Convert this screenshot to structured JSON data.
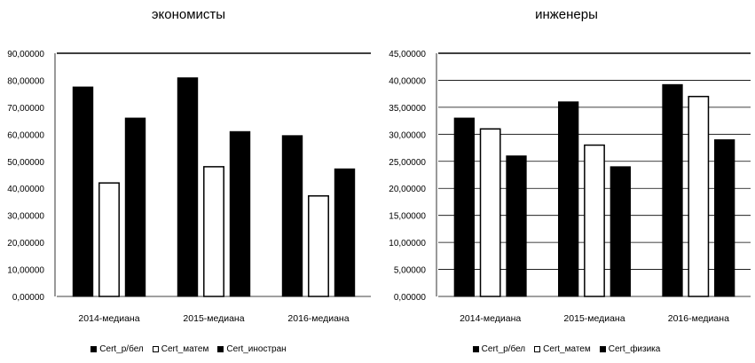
{
  "chart_data": [
    {
      "type": "bar",
      "title": "экономисты",
      "categories": [
        "2014-медиана",
        "2015-медиана",
        "2016-медиана"
      ],
      "series": [
        {
          "name": "Cert_р/бел",
          "values": [
            77.5,
            80.9,
            59.5
          ],
          "fill": "#000000"
        },
        {
          "name": "Cert_матем",
          "values": [
            42.0,
            48.0,
            37.2
          ],
          "fill": "#ffffff"
        },
        {
          "name": "Cert_иностран",
          "values": [
            66.0,
            61.0,
            47.2
          ],
          "fill": "#000000"
        }
      ],
      "ylim": [
        0,
        90
      ],
      "yticks": [
        "0,00000",
        "10,00000",
        "20,00000",
        "30,00000",
        "40,00000",
        "50,00000",
        "60,00000",
        "70,00000",
        "80,00000",
        "90,00000"
      ],
      "grid": false,
      "legend_placement": "bottom"
    },
    {
      "type": "bar",
      "title": "инженеры",
      "categories": [
        "2014-медиана",
        "2015-медиана",
        "2016-медиана"
      ],
      "series": [
        {
          "name": "Cert_р/бел",
          "values": [
            33.0,
            36.0,
            39.2
          ],
          "fill": "#000000"
        },
        {
          "name": "Cert_матем",
          "values": [
            31.0,
            28.0,
            37.0
          ],
          "fill": "#ffffff"
        },
        {
          "name": "Cert_физика",
          "values": [
            26.0,
            24.0,
            29.0
          ],
          "fill": "#000000"
        }
      ],
      "ylim": [
        0,
        45
      ],
      "yticks": [
        "0,00000",
        "5,00000",
        "10,00000",
        "15,00000",
        "20,00000",
        "25,00000",
        "30,00000",
        "35,00000",
        "40,00000",
        "45,00000"
      ],
      "grid": true,
      "legend_placement": "bottom"
    }
  ]
}
